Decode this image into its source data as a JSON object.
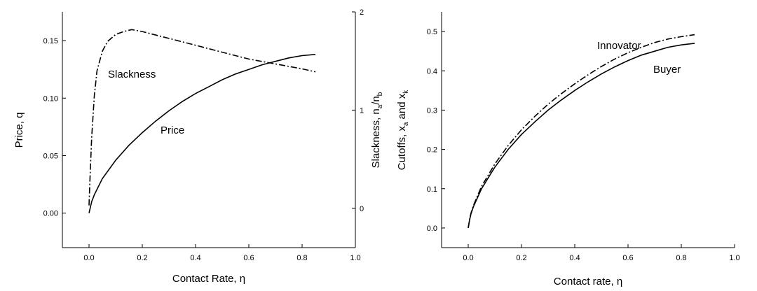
{
  "chart_data": [
    {
      "type": "line",
      "title": "",
      "xlabel": "Contact Rate, η",
      "ylabel_left": "Price, q",
      "ylabel_right_parts": [
        "Slackness, n",
        "a",
        "/n",
        "b"
      ],
      "xlim": [
        -0.1,
        1.0
      ],
      "ylim_left": [
        -0.03,
        0.175
      ],
      "ylim_right": [
        -0.4,
        2.0
      ],
      "xticks": [
        "0.0",
        "0.2",
        "0.4",
        "0.6",
        "0.8",
        "1.0"
      ],
      "yticks_left": [
        "0.00",
        "0.05",
        "0.10",
        "0.15"
      ],
      "yticks_right": [
        "0",
        "1",
        "2"
      ],
      "grid": false,
      "series": [
        {
          "name": "Price",
          "axis": "left",
          "style": "solid",
          "x": [
            0.0,
            0.01,
            0.02,
            0.05,
            0.1,
            0.15,
            0.2,
            0.25,
            0.3,
            0.35,
            0.4,
            0.45,
            0.5,
            0.55,
            0.6,
            0.65,
            0.7,
            0.75,
            0.8,
            0.85
          ],
          "y": [
            0.0,
            0.01,
            0.016,
            0.03,
            0.046,
            0.059,
            0.07,
            0.08,
            0.089,
            0.097,
            0.104,
            0.11,
            0.116,
            0.121,
            0.125,
            0.129,
            0.132,
            0.135,
            0.137,
            0.138
          ]
        },
        {
          "name": "Slackness",
          "axis": "right",
          "style": "dashdot",
          "x": [
            0.0,
            0.005,
            0.01,
            0.02,
            0.03,
            0.05,
            0.07,
            0.1,
            0.13,
            0.16,
            0.2,
            0.3,
            0.4,
            0.5,
            0.6,
            0.7,
            0.8,
            0.85
          ],
          "y": [
            0.03,
            0.4,
            0.72,
            1.15,
            1.4,
            1.6,
            1.7,
            1.77,
            1.8,
            1.82,
            1.8,
            1.73,
            1.66,
            1.59,
            1.52,
            1.47,
            1.42,
            1.39
          ]
        }
      ],
      "annotations": [
        "Slackness",
        "Price"
      ]
    },
    {
      "type": "line",
      "title": "",
      "xlabel": "Contact rate, η",
      "ylabel_parts": [
        "Cutoffs, x",
        "a",
        " and x",
        "k"
      ],
      "xlim": [
        -0.1,
        1.0
      ],
      "ylim": [
        -0.05,
        0.55
      ],
      "xticks": [
        "0.0",
        "0.2",
        "0.4",
        "0.6",
        "0.8",
        "1.0"
      ],
      "yticks": [
        "0.0",
        "0.1",
        "0.2",
        "0.3",
        "0.4",
        "0.5"
      ],
      "grid": false,
      "series": [
        {
          "name": "Buyer",
          "style": "solid",
          "x": [
            0.0,
            0.005,
            0.01,
            0.02,
            0.05,
            0.1,
            0.15,
            0.2,
            0.25,
            0.3,
            0.35,
            0.4,
            0.45,
            0.5,
            0.55,
            0.6,
            0.65,
            0.7,
            0.75,
            0.8,
            0.85
          ],
          "y": [
            0.0,
            0.02,
            0.035,
            0.055,
            0.1,
            0.155,
            0.2,
            0.238,
            0.27,
            0.3,
            0.326,
            0.35,
            0.372,
            0.392,
            0.41,
            0.426,
            0.44,
            0.45,
            0.46,
            0.466,
            0.47
          ]
        },
        {
          "name": "Innovator",
          "style": "dashdot",
          "x": [
            0.0,
            0.005,
            0.01,
            0.02,
            0.05,
            0.1,
            0.15,
            0.2,
            0.25,
            0.3,
            0.35,
            0.4,
            0.45,
            0.5,
            0.55,
            0.6,
            0.65,
            0.7,
            0.75,
            0.8,
            0.85
          ],
          "y": [
            0.0,
            0.021,
            0.037,
            0.058,
            0.106,
            0.163,
            0.21,
            0.25,
            0.284,
            0.315,
            0.342,
            0.367,
            0.39,
            0.411,
            0.43,
            0.446,
            0.46,
            0.472,
            0.481,
            0.487,
            0.492
          ]
        }
      ],
      "annotations": [
        "Innovator",
        "Buyer"
      ]
    }
  ]
}
